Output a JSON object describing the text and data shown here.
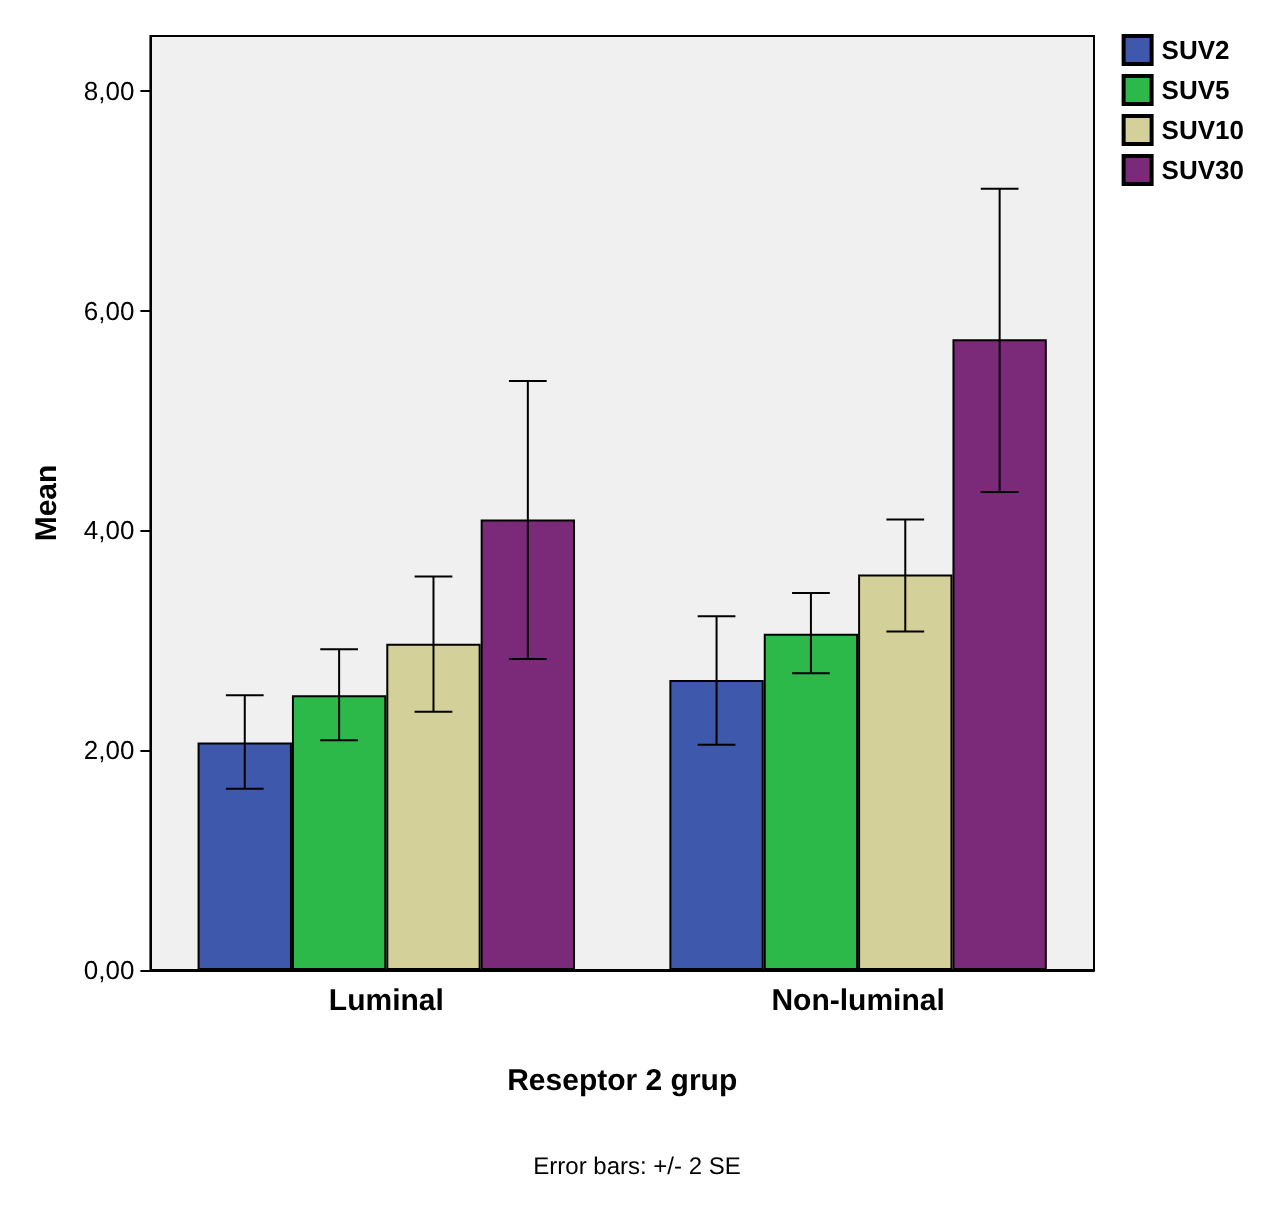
{
  "chart_data": {
    "type": "bar",
    "xlabel": "Reseptor 2 grup",
    "ylabel": "Mean",
    "categories": [
      "Luminal",
      "Non-luminal"
    ],
    "series": [
      {
        "name": "SUV2",
        "color": "#3e58ac",
        "values": [
          2.07,
          2.64
        ],
        "errors": [
          [
            1.65,
            2.5
          ],
          [
            2.05,
            3.22
          ]
        ]
      },
      {
        "name": "SUV5",
        "color": "#2db84a",
        "values": [
          2.5,
          3.06
        ],
        "errors": [
          [
            2.09,
            2.92
          ],
          [
            2.7,
            3.43
          ]
        ]
      },
      {
        "name": "SUV10",
        "color": "#d4d09a",
        "values": [
          2.97,
          3.6
        ],
        "errors": [
          [
            2.35,
            3.58
          ],
          [
            3.08,
            4.1
          ]
        ]
      },
      {
        "name": "SUV30",
        "color": "#7b2a7a",
        "values": [
          4.1,
          5.74
        ],
        "errors": [
          [
            2.83,
            5.36
          ],
          [
            4.35,
            7.11
          ]
        ]
      }
    ],
    "ylim": [
      0,
      8.5
    ],
    "yticks": [
      {
        "value": 0,
        "label": "0,00"
      },
      {
        "value": 2,
        "label": "2,00"
      },
      {
        "value": 4,
        "label": "4,00"
      },
      {
        "value": 6,
        "label": "6,00"
      },
      {
        "value": 8,
        "label": "8,00"
      }
    ],
    "grid": false,
    "legend": "top right",
    "annotations": [
      "Error bars: +/- 2 SE"
    ]
  }
}
